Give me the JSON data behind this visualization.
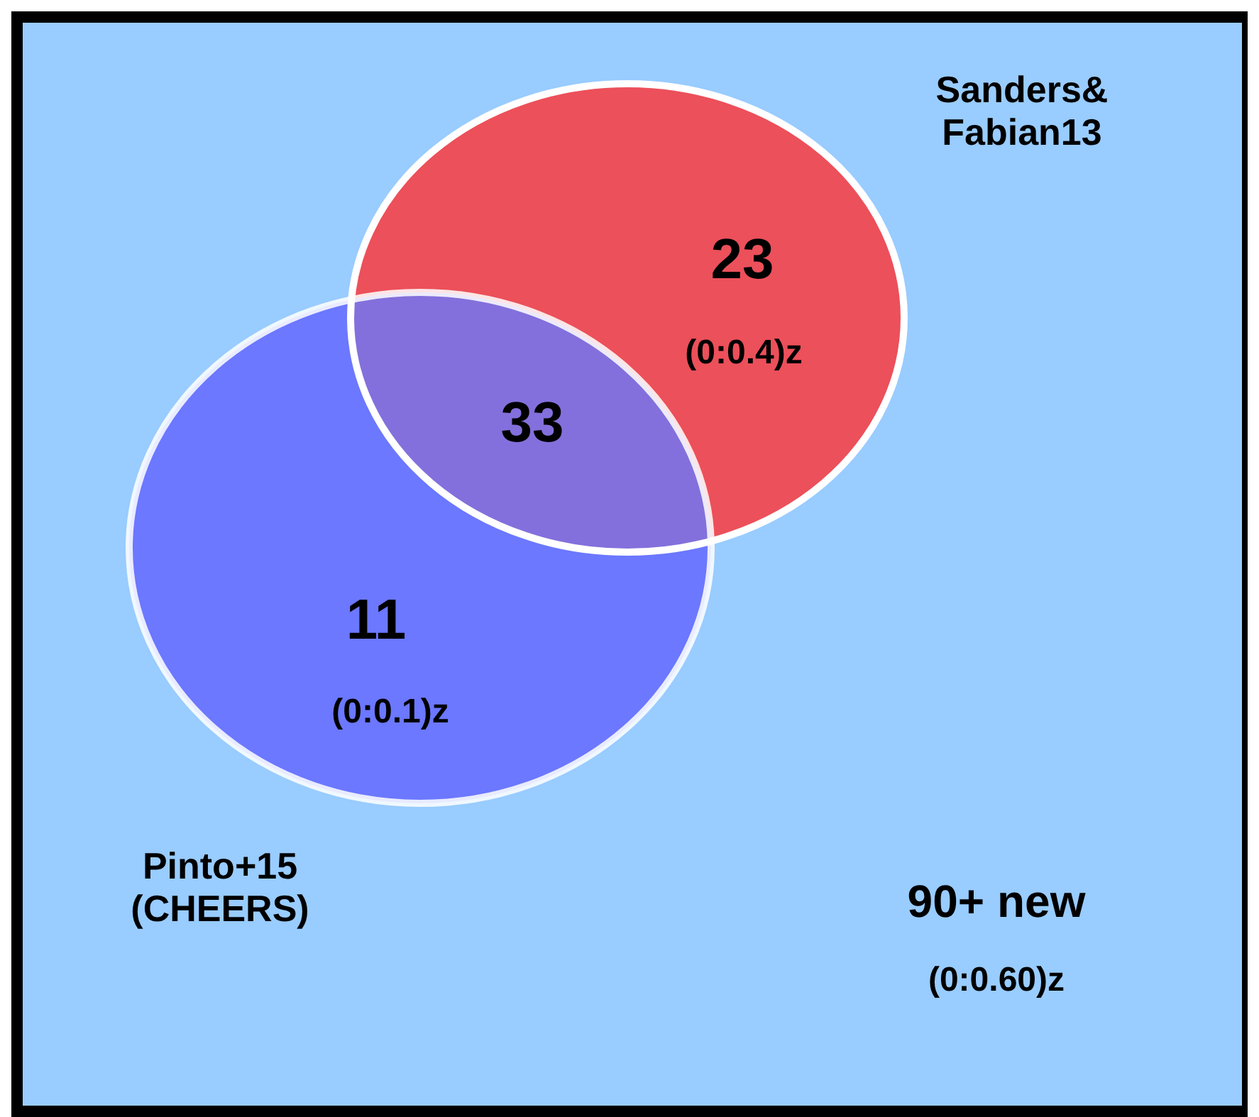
{
  "chart_data": {
    "type": "other",
    "categories": [
      null,
      null,
      null
    ],
    "values": [
      23,
      33,
      11
    ],
    "colors": [
      "#ec505a",
      "#8370dc",
      "#6b78ff"
    ],
    "data_labels": true,
    "annotations": [
      "Sanders&\nFabian13",
      "Pinto+15\n(CHEERS)",
      "(0:0.4)z",
      "(0:0.1)z",
      "90+ new",
      "(0:0.60)z"
    ]
  }
}
